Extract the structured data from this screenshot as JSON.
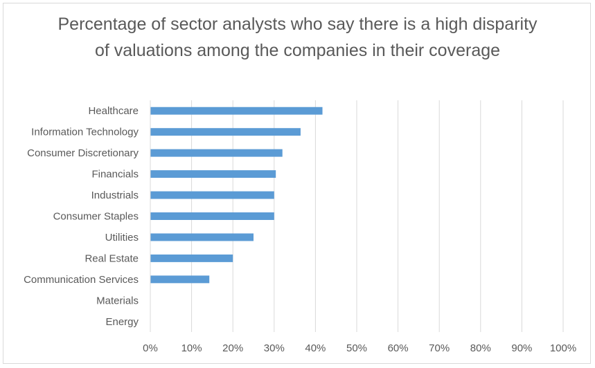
{
  "chart_data": {
    "type": "bar",
    "orientation": "horizontal",
    "title": "Percentage of sector analysts who say there is a high disparity of valuations among the companies in their coverage",
    "categories": [
      "Healthcare",
      "Information Technology",
      "Consumer Discretionary",
      "Financials",
      "Industrials",
      "Consumer Staples",
      "Utilities",
      "Real Estate",
      "Communication Services",
      "Materials",
      "Energy"
    ],
    "values": [
      0.417,
      0.364,
      0.32,
      0.304,
      0.3,
      0.3,
      0.25,
      0.2,
      0.143,
      0,
      0
    ],
    "xlim": [
      0,
      1
    ],
    "xticks": [
      0,
      0.1,
      0.2,
      0.3,
      0.4,
      0.5,
      0.6,
      0.7,
      0.8,
      0.9,
      1.0
    ],
    "xtick_labels": [
      "0%",
      "10%",
      "20%",
      "30%",
      "40%",
      "50%",
      "60%",
      "70%",
      "80%",
      "90%",
      "100%"
    ],
    "xlabel": "",
    "ylabel": "",
    "grid": "vertical",
    "legend": "none",
    "bar_color": "#5b9bd5",
    "grid_color": "#d9d9d9"
  }
}
